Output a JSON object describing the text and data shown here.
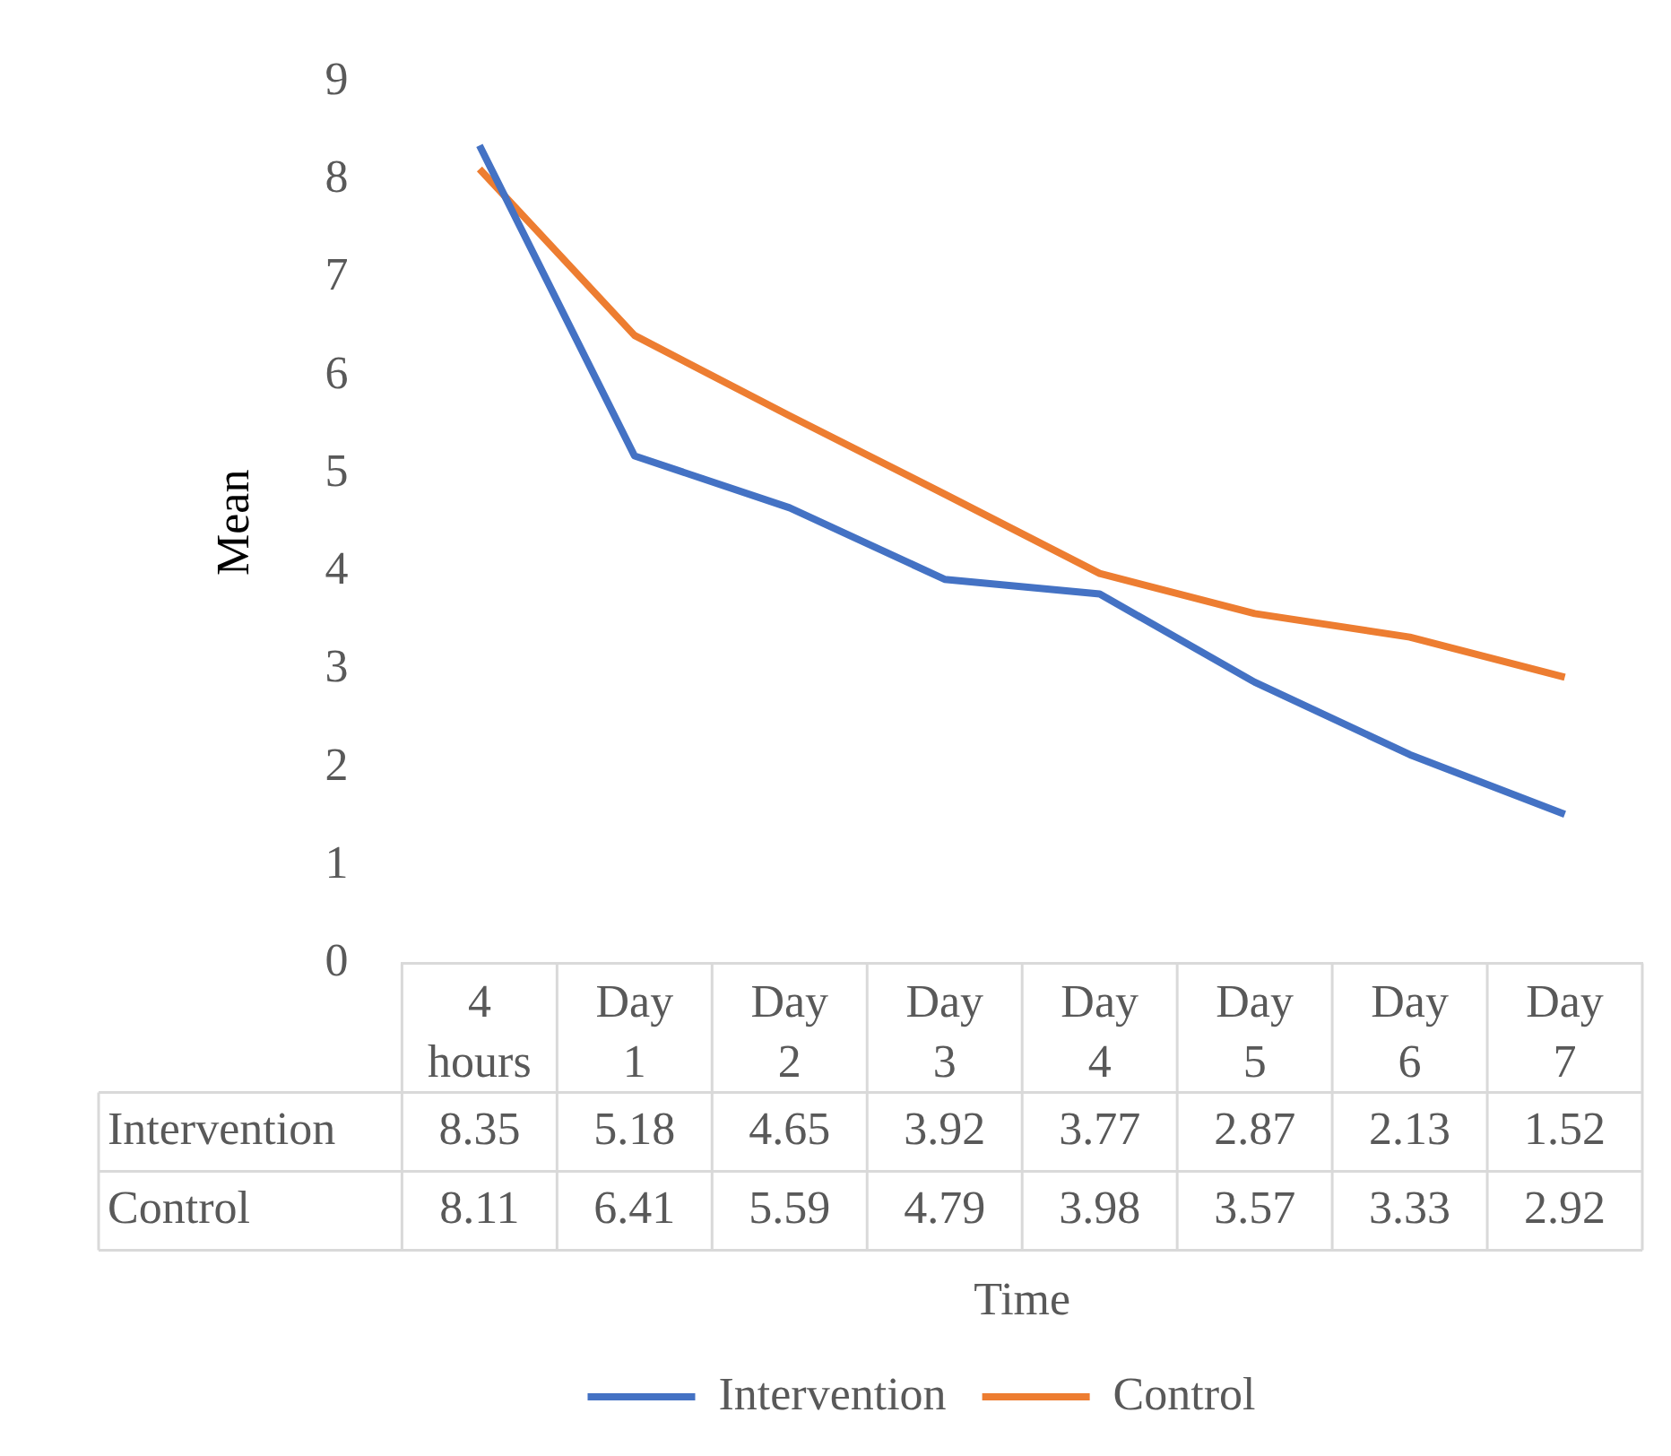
{
  "chart_data": {
    "type": "line",
    "ylabel": "Mean",
    "xlabel": "Time",
    "categories": [
      "4 hours",
      "Day 1",
      "Day 2",
      "Day 3",
      "Day 4",
      "Day 5",
      "Day 6",
      "Day 7"
    ],
    "series": [
      {
        "name": "Intervention",
        "color": "#4472c4",
        "values": [
          8.35,
          5.18,
          4.65,
          3.92,
          3.77,
          2.87,
          2.13,
          1.52
        ]
      },
      {
        "name": "Control",
        "color": "#ed7d31",
        "values": [
          8.11,
          6.41,
          5.59,
          4.79,
          3.98,
          3.57,
          3.33,
          2.92
        ]
      }
    ],
    "ylim": [
      0,
      9
    ],
    "yticks": [
      0,
      1,
      2,
      3,
      4,
      5,
      6,
      7,
      8,
      9
    ],
    "grid": false,
    "legend": "bottom",
    "marker": "none",
    "line_style": "solid",
    "data_labels": true
  }
}
